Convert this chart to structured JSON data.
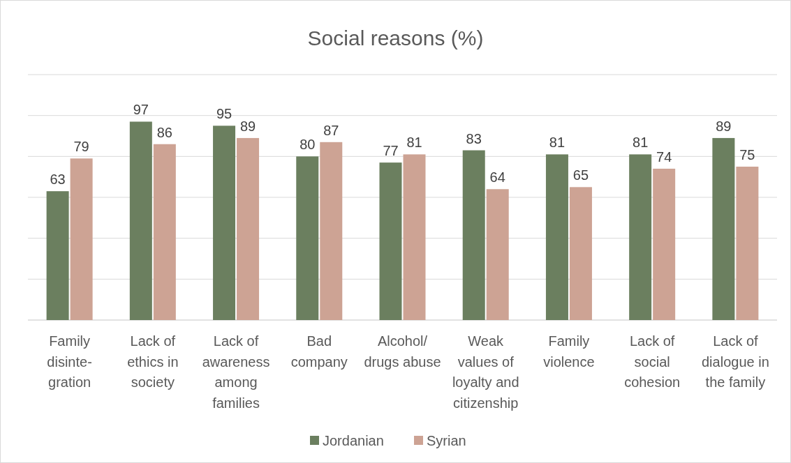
{
  "chart_data": {
    "type": "bar",
    "title": "Social reasons (%)",
    "categories": [
      "Family\ndisinte-\ngration",
      "Lack of\nethics in\nsociety",
      "Lack of\nawareness\namong\nfamilies",
      "Bad\ncompany",
      "Alcohol/\ndrugs abuse",
      "Weak\nvalues of\nloyalty and\ncitizenship",
      "Family\nviolence",
      "Lack of\nsocial\ncohesion",
      "Lack of\ndialogue in\nthe family"
    ],
    "series": [
      {
        "name": "Jordanian",
        "color": "#6b7f5f",
        "values": [
          63,
          97,
          95,
          80,
          77,
          83,
          81,
          81,
          89
        ]
      },
      {
        "name": "Syrian",
        "color": "#cda394",
        "values": [
          79,
          86,
          89,
          87,
          81,
          64,
          65,
          74,
          75
        ]
      }
    ],
    "ylim": [
      0,
      120
    ],
    "yticks": [
      {
        "value": 0,
        "label": null
      },
      {
        "value": 20,
        "label": null
      },
      {
        "value": 40,
        "label": null
      },
      {
        "value": 60,
        "label": null
      },
      {
        "value": 80,
        "label": null
      },
      {
        "value": 100,
        "label": null
      },
      {
        "value": 120,
        "label": null
      }
    ],
    "tick_labels": "x",
    "grid": "y",
    "data_labels": true,
    "legend": "bottom"
  }
}
